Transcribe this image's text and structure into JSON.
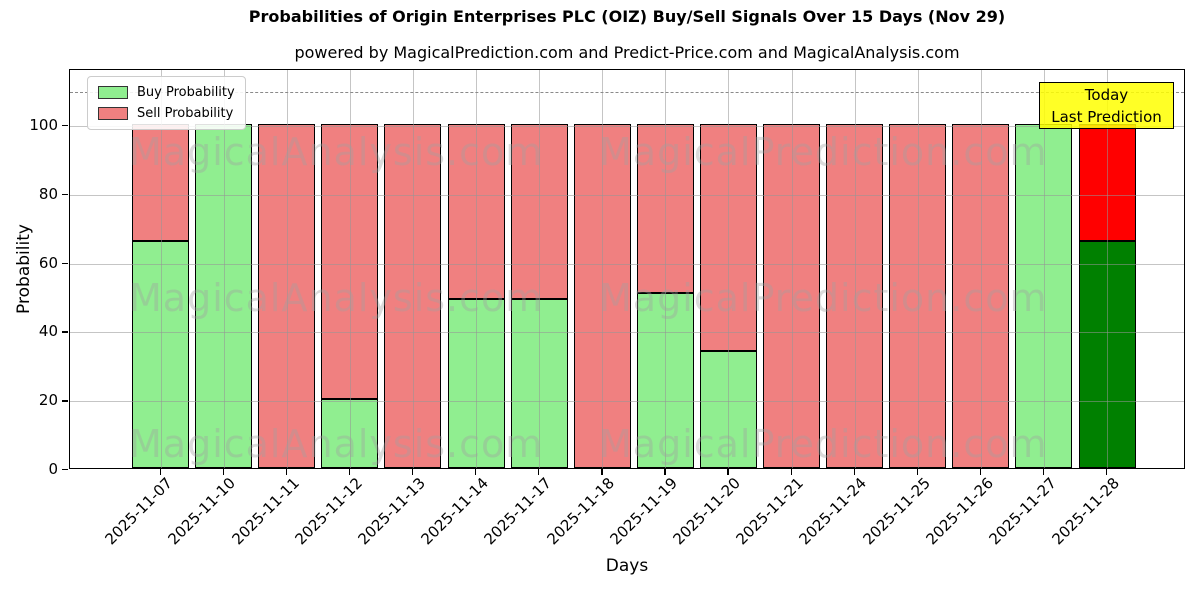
{
  "title": "Probabilities of Origin Enterprises PLC (OIZ) Buy/Sell Signals Over 15 Days (Nov 29)",
  "subtitle": "powered by MagicalPrediction.com and Predict-Price.com and MagicalAnalysis.com",
  "ylabel": "Probability",
  "xlabel": "Days",
  "legend": {
    "buy_label": "Buy Probability",
    "sell_label": "Sell Probability"
  },
  "annotation": {
    "line1": "Today",
    "line2": "Last Prediction"
  },
  "watermarks": [
    "MagicalAnalysis.com",
    "MagicalPrediction.com"
  ],
  "colors": {
    "buy": "#90EE90",
    "sell": "#F08080",
    "today_buy": "#008000",
    "today_sell": "#FF0000",
    "annotation_bg": "#FFFF00",
    "grid": "#b0b0b0",
    "threshold": "#8a8a8a"
  },
  "chart_data": {
    "type": "bar",
    "stacked": true,
    "title": "Probabilities of Origin Enterprises PLC (OIZ) Buy/Sell Signals Over 15 Days (Nov 29)",
    "xlabel": "Days",
    "ylabel": "Probability",
    "categories": [
      "2025-11-07",
      "2025-11-10",
      "2025-11-11",
      "2025-11-12",
      "2025-11-13",
      "2025-11-14",
      "2025-11-17",
      "2025-11-18",
      "2025-11-19",
      "2025-11-20",
      "2025-11-21",
      "2025-11-24",
      "2025-11-25",
      "2025-11-26",
      "2025-11-27",
      "2025-11-28"
    ],
    "series": [
      {
        "name": "Buy Probability",
        "values": [
          66,
          100,
          0,
          20,
          0,
          49,
          49,
          0,
          51,
          34,
          0,
          0,
          0,
          0,
          100,
          66
        ]
      },
      {
        "name": "Sell Probability",
        "values": [
          34,
          0,
          100,
          80,
          100,
          51,
          51,
          100,
          49,
          66,
          100,
          100,
          100,
          100,
          0,
          34
        ]
      }
    ],
    "yticks": [
      0,
      20,
      40,
      60,
      80,
      100
    ],
    "ylim": [
      0,
      116.5
    ],
    "threshold_line": 110,
    "grid": true,
    "legend_position": "upper-left",
    "today_index": 15
  }
}
